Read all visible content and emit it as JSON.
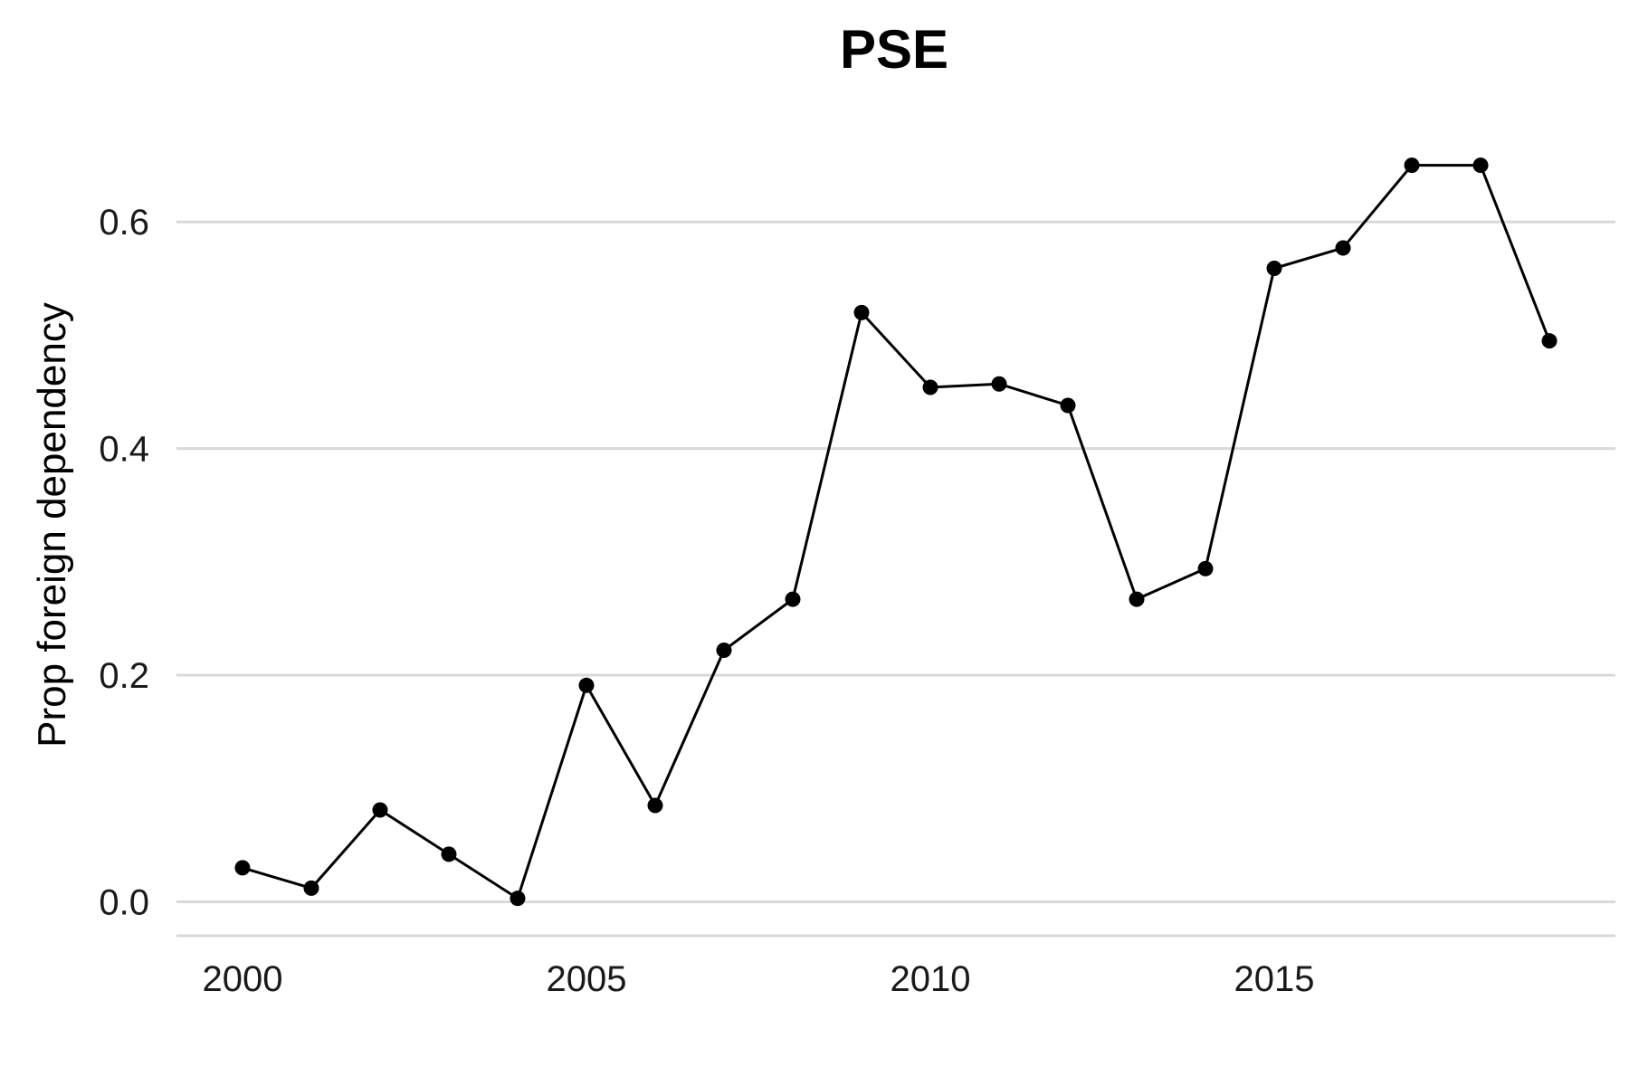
{
  "chart_data": {
    "type": "line",
    "title": "PSE",
    "xlabel": "",
    "ylabel": "Prop foreign dependency",
    "x": [
      2000,
      2001,
      2002,
      2003,
      2004,
      2005,
      2006,
      2007,
      2008,
      2009,
      2010,
      2011,
      2012,
      2013,
      2014,
      2015,
      2016,
      2017,
      2018,
      2019
    ],
    "series": [
      {
        "values": [
          0.03,
          0.012,
          0.081,
          0.042,
          0.003,
          0.191,
          0.085,
          0.222,
          0.267,
          0.52,
          0.454,
          0.457,
          0.438,
          0.267,
          0.294,
          0.559,
          0.577,
          0.65,
          0.65,
          0.495
        ]
      }
    ],
    "xlim": [
      1999.04,
      2019.96
    ],
    "ylim": [
      -0.03,
      0.7
    ],
    "xticks": [
      "2000",
      "2005",
      "2010",
      "2015"
    ],
    "yticks": [
      "0.0",
      "0.2",
      "0.4",
      "0.6"
    ],
    "grid": true,
    "line_color": "#000000",
    "grid_color": "#d9d9d9"
  }
}
